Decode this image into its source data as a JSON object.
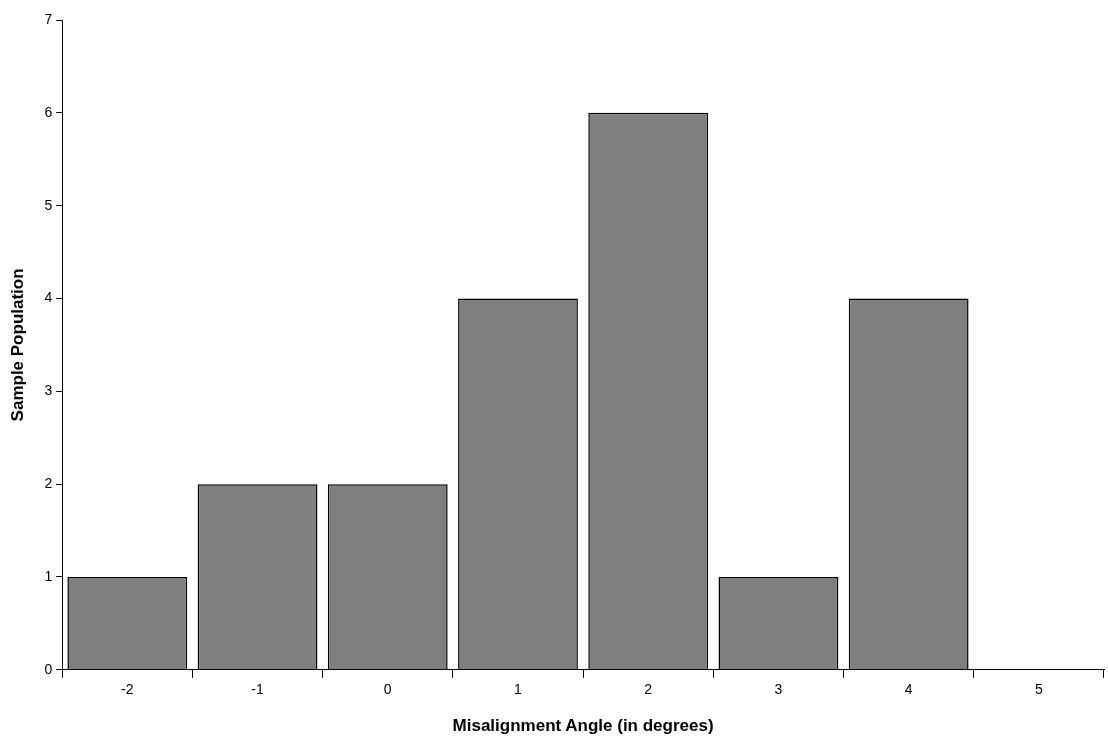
{
  "chart_data": {
    "type": "bar",
    "xlabel": "Misalignment Angle (in degrees)",
    "ylabel": "Sample Population",
    "categories": [
      "-2",
      "-1",
      "0",
      "1",
      "2",
      "3",
      "4",
      "5"
    ],
    "values": [
      1,
      2,
      2,
      4,
      6,
      1,
      4,
      0
    ],
    "color": "#7f7f7f",
    "ylim": [
      0,
      7
    ],
    "yticks": [
      0,
      1,
      2,
      3,
      4,
      5,
      6,
      7
    ],
    "grid": false,
    "legend": false
  }
}
